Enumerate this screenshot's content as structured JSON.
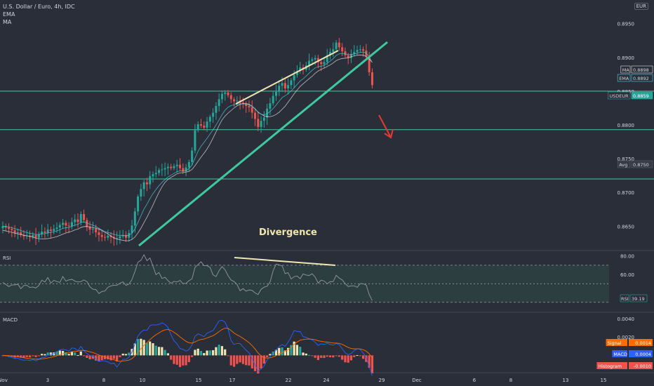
{
  "legend": {
    "symbol_line": "U.S. Dollar / Euro, 4h, IDC",
    "ema_label": "EMA",
    "ma_label": "MA"
  },
  "currency": "EUR",
  "annotation": "Divergence",
  "colors": {
    "bg": "#2a2e39",
    "up": "#26a69a",
    "down": "#ef5350",
    "trendline": "#3ec9a0",
    "divergence_line": "#f0e6b2",
    "hline": "#3ec9a0",
    "arrow": "#e53935",
    "rsi_line": "#9598a1",
    "rsi_band": "#2e4a45",
    "macd_line": "#2962ff",
    "signal_line": "#ff6d00",
    "hist_up": "#f0e6b2",
    "hist_up2": "#26a69a",
    "hist_down": "#ef5350"
  },
  "chart_data": [
    {
      "type": "candlestick",
      "title": "U.S. Dollar / Euro, 4h, IDC",
      "y_ticks": [
        "0.8950",
        "0.8900",
        "0.8850",
        "0.8800",
        "0.8750",
        "0.8700",
        "0.8650"
      ],
      "ylim": [
        0.8615,
        0.8985
      ],
      "x_ticks": [
        "Nov",
        "3",
        "8",
        "10",
        "15",
        "17",
        "22",
        "24",
        "29",
        "Dec",
        "6",
        "8",
        "13",
        "15"
      ],
      "horizontal_levels": [
        0.885,
        0.8793,
        0.872
      ],
      "right_labels": [
        {
          "name": "MA",
          "value": "0.8898"
        },
        {
          "name": "EMA",
          "value": "0.8892"
        },
        {
          "name": "USDEUR",
          "value": "0.8859"
        },
        {
          "name": "Avg",
          "value": "0.8750"
        }
      ],
      "price_path": [
        0.865,
        0.8648,
        0.8646,
        0.8644,
        0.864,
        0.8641,
        0.8637,
        0.8635,
        0.8636,
        0.8634,
        0.8637,
        0.8633,
        0.8638,
        0.8642,
        0.864,
        0.8645,
        0.8643,
        0.8646,
        0.8648,
        0.8652,
        0.8655,
        0.8651,
        0.865,
        0.8656,
        0.866,
        0.8656,
        0.8668,
        0.8659,
        0.8649,
        0.8645,
        0.8646,
        0.8641,
        0.8637,
        0.8634,
        0.8633,
        0.8636,
        0.8634,
        0.8632,
        0.8632,
        0.8635,
        0.8637,
        0.8633,
        0.864,
        0.8651,
        0.8672,
        0.8694,
        0.8705,
        0.8715,
        0.8712,
        0.8724,
        0.8727,
        0.8729,
        0.8733,
        0.8734,
        0.8736,
        0.8738,
        0.8736,
        0.8739,
        0.8741,
        0.8736,
        0.8731,
        0.8737,
        0.8745,
        0.8762,
        0.8792,
        0.8801,
        0.8799,
        0.8796,
        0.8805,
        0.8812,
        0.8818,
        0.8828,
        0.8838,
        0.8846,
        0.8848,
        0.8844,
        0.8838,
        0.8835,
        0.8836,
        0.8833,
        0.8831,
        0.8828,
        0.8826,
        0.8818,
        0.8809,
        0.8797,
        0.8806,
        0.8811,
        0.8824,
        0.8832,
        0.8843,
        0.8849,
        0.8858,
        0.8862,
        0.8854,
        0.8859,
        0.8866,
        0.8874,
        0.888,
        0.8885,
        0.8882,
        0.8888,
        0.8895,
        0.8897,
        0.8899,
        0.8893,
        0.889,
        0.8893,
        0.8903,
        0.8908,
        0.8912,
        0.8922,
        0.8915,
        0.8909,
        0.8903,
        0.8899,
        0.8905,
        0.8908,
        0.8911,
        0.8912,
        0.891,
        0.8901,
        0.8878,
        0.8859
      ],
      "divergence_text": "Divergence"
    },
    {
      "type": "line",
      "title": "RSI",
      "levels": [
        70,
        50,
        30
      ],
      "y_ticks": [
        "80.00",
        "60.00"
      ],
      "ylim": [
        20,
        85
      ],
      "current": {
        "name": "RSI",
        "value": "39.19"
      }
    },
    {
      "type": "line",
      "title": "MACD",
      "y_ticks": [
        "0.0040",
        "0.0020"
      ],
      "ylim": [
        -0.0018,
        0.0046
      ],
      "labels": [
        {
          "name": "Signal",
          "value": "0.0014"
        },
        {
          "name": "MACD",
          "value": "0.0004"
        },
        {
          "name": "Histogram",
          "value": "-0.0010"
        }
      ]
    }
  ]
}
